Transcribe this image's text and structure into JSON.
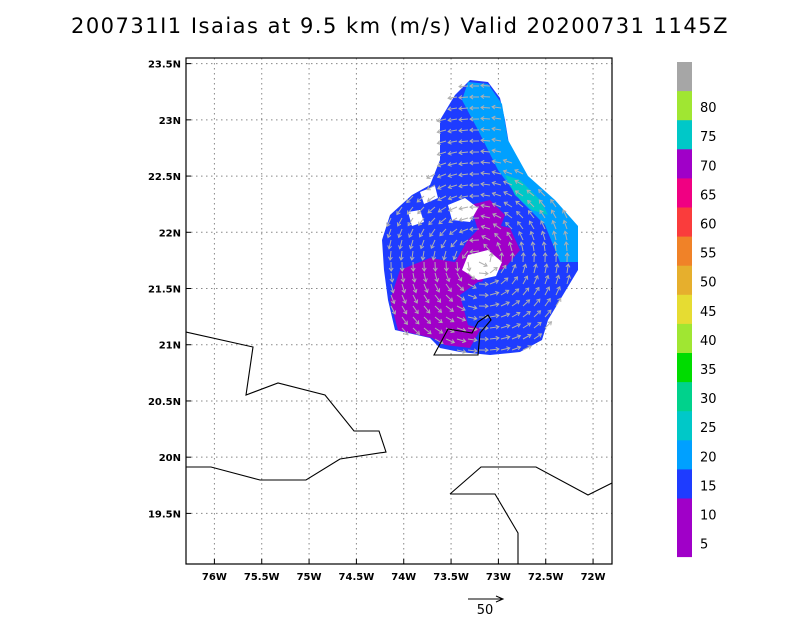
{
  "title": "200731I1 Isaias at 9.5 km (m/s) Valid 20200731 1145Z",
  "map": {
    "lon_range": [
      -76.3,
      -71.8
    ],
    "lat_range": [
      19.05,
      23.55
    ],
    "lat_ticks": [
      {
        "value": 23.5,
        "label": "23.5N"
      },
      {
        "value": 23.0,
        "label": "23N"
      },
      {
        "value": 22.5,
        "label": "22.5N"
      },
      {
        "value": 22.0,
        "label": "22N"
      },
      {
        "value": 21.5,
        "label": "21.5N"
      },
      {
        "value": 21.0,
        "label": "21N"
      },
      {
        "value": 20.5,
        "label": "20.5N"
      },
      {
        "value": 20.0,
        "label": "20N"
      },
      {
        "value": 19.5,
        "label": "19.5N"
      }
    ],
    "lon_ticks": [
      {
        "value": -76.0,
        "label": "76W"
      },
      {
        "value": -75.5,
        "label": "75.5W"
      },
      {
        "value": -75.0,
        "label": "75W"
      },
      {
        "value": -74.5,
        "label": "74.5W"
      },
      {
        "value": -74.0,
        "label": "74W"
      },
      {
        "value": -73.5,
        "label": "73.5W"
      },
      {
        "value": -73.0,
        "label": "73W"
      },
      {
        "value": -72.5,
        "label": "72.5W"
      },
      {
        "value": -72.0,
        "label": "72W"
      }
    ],
    "grid": true
  },
  "colorbar": {
    "levels": [
      {
        "label": "",
        "color": "#a6a6a6"
      },
      {
        "label": "80",
        "color": "#a0e632"
      },
      {
        "label": "75",
        "color": "#00c8c8"
      },
      {
        "label": "70",
        "color": "#a000c8"
      },
      {
        "label": "65",
        "color": "#f00082"
      },
      {
        "label": "60",
        "color": "#fa3c3c"
      },
      {
        "label": "55",
        "color": "#f08228"
      },
      {
        "label": "50",
        "color": "#e6af2d"
      },
      {
        "label": "45",
        "color": "#e6dc32"
      },
      {
        "label": "40",
        "color": "#a0e632"
      },
      {
        "label": "35",
        "color": "#00dc00"
      },
      {
        "label": "30",
        "color": "#00d28c"
      },
      {
        "label": "25",
        "color": "#00c8c8"
      },
      {
        "label": "20",
        "color": "#00a0ff"
      },
      {
        "label": "15",
        "color": "#1e3cff"
      },
      {
        "label": "10",
        "color": "#a000c8"
      },
      {
        "label": "5",
        "color": "#a000c8"
      }
    ]
  },
  "reference_vector": {
    "label": "50"
  }
}
